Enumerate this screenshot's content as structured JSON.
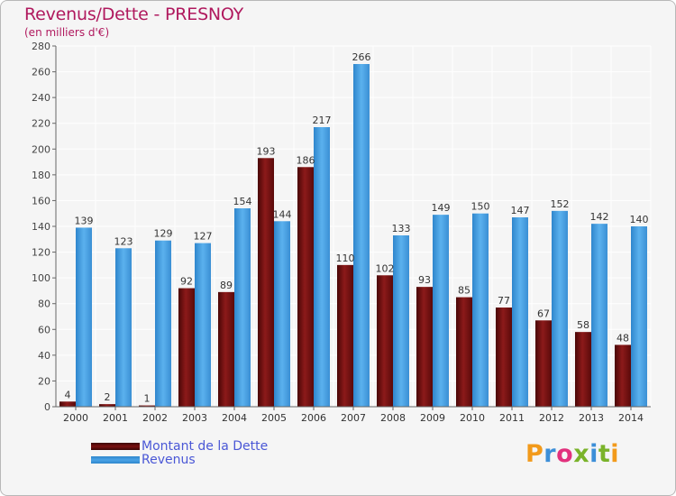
{
  "header": {
    "title": "Revenus/Dette - PRESNOY",
    "subtitle": "(en milliers d'€)"
  },
  "legend": {
    "items": [
      {
        "label": "Montant de la Dette",
        "color": "#7a1010"
      },
      {
        "label": "Revenus",
        "color": "#4aa3e6"
      }
    ]
  },
  "logo": {
    "text": "Proxiti",
    "colors": [
      "#f29a1b",
      "#3d8fd8",
      "#e2317d",
      "#7ab32a"
    ]
  },
  "chart_data": {
    "type": "bar",
    "title": "Revenus/Dette - PRESNOY",
    "subtitle": "(en milliers d'€)",
    "xlabel": "",
    "ylabel": "",
    "ylim": [
      0,
      280
    ],
    "yticks": [
      0,
      20,
      40,
      60,
      80,
      100,
      120,
      140,
      160,
      180,
      200,
      220,
      240,
      260,
      280
    ],
    "grid": true,
    "legend_position": "bottom-left",
    "categories": [
      "2000",
      "2001",
      "2002",
      "2003",
      "2004",
      "2005",
      "2006",
      "2007",
      "2008",
      "2009",
      "2010",
      "2011",
      "2012",
      "2013",
      "2014"
    ],
    "series": [
      {
        "name": "Montant de la Dette",
        "color": "#7a1010",
        "values": [
          4,
          2,
          1,
          92,
          89,
          193,
          186,
          110,
          102,
          93,
          85,
          77,
          67,
          58,
          48
        ]
      },
      {
        "name": "Revenus",
        "color": "#4aa3e6",
        "values": [
          139,
          123,
          129,
          127,
          154,
          144,
          217,
          266,
          133,
          149,
          150,
          147,
          152,
          142,
          140
        ]
      }
    ]
  }
}
